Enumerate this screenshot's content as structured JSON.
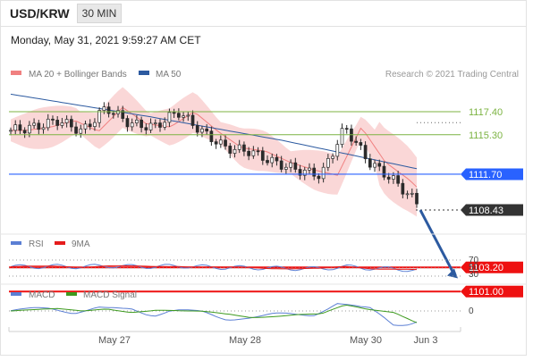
{
  "header": {
    "symbol": "USD/KRW",
    "timeframe": "30 MIN"
  },
  "datetime": "Monday, May 31, 2021 9:59:27 AM CET",
  "price_panel": {
    "legend": [
      {
        "label": "MA 20 + Bollinger Bands",
        "color": "#f08080"
      },
      {
        "label": "MA 50",
        "color": "#2c5aa0"
      }
    ],
    "credit": "Research © 2021 Trading Central"
  },
  "levels": {
    "resistance": [
      {
        "value": 1117.4,
        "label": "1117.40",
        "color": "#7cb342"
      },
      {
        "value": 1115.3,
        "label": "1115.30",
        "color": "#7cb342"
      }
    ],
    "pivot": {
      "value": 1111.7,
      "label": "1111.70",
      "color": "#2962ff"
    },
    "last": {
      "value": 1108.43,
      "label": "1108.43",
      "color": "#333333"
    },
    "support": [
      {
        "value": 1103.2,
        "label": "1103.20",
        "color": "#ee1111"
      },
      {
        "value": 1101.0,
        "label": "1101.00",
        "color": "#ee1111"
      }
    ]
  },
  "rsi_panel": {
    "legend": [
      {
        "label": "RSI",
        "color": "#5b7fd4"
      },
      {
        "label": "9MA",
        "color": "#e51c1c"
      }
    ],
    "levels": [
      {
        "value": 70,
        "label": "70"
      },
      {
        "value": 50,
        "label": "50"
      },
      {
        "value": 30,
        "label": "30"
      }
    ]
  },
  "macd_panel": {
    "legend": [
      {
        "label": "MACD",
        "color": "#5b7fd4"
      },
      {
        "label": "MACD Signal",
        "color": "#3d9a1e"
      }
    ],
    "zero_label": "0"
  },
  "x_axis": {
    "ticks": [
      "May 27",
      "May 28",
      "May 30",
      "Jun 3"
    ]
  },
  "chart_data": {
    "type": "line",
    "title": "",
    "xlabel": "",
    "ylabel": "",
    "ylim": [
      1100.5,
      1119.5
    ],
    "x": [
      "May 27",
      "May 28",
      "May 30",
      "Jun 3"
    ],
    "series": [
      {
        "name": "MA 50",
        "values": [
          1119.0,
          1117.0,
          1114.8,
          1112.2
        ]
      },
      {
        "name": "MA 20 + Bollinger Bands",
        "values": [
          1117.6,
          1116.6,
          1115.8,
          1112.5
        ]
      }
    ],
    "price_path": [
      1115.7,
      1116.0,
      1116.6,
      1115.6,
      1117.8,
      1116.3,
      1116.0,
      1117.4,
      1115.6,
      1114.1,
      1113.8,
      1112.8,
      1112.1,
      1111.6,
      1116.0,
      1112.8,
      1111.2,
      1109.1
    ],
    "forecast": {
      "from": 1108.43,
      "to": 1102.2,
      "direction": "down"
    }
  }
}
